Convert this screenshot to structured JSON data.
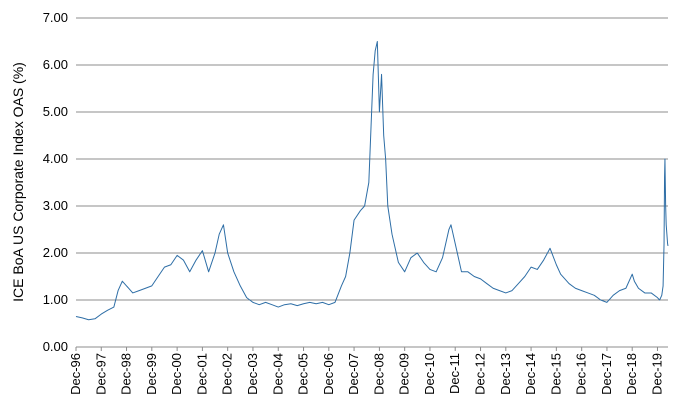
{
  "chart_data": {
    "type": "line",
    "title": "",
    "ylabel": "ICE BoA US Corporate Index OAS (%)",
    "xlabel": "",
    "ylim": [
      0,
      7
    ],
    "xlim": [
      "1996-12-01",
      "2020-05-01"
    ],
    "grid": "horizontal",
    "legend": "none",
    "line_color": "#2e6ea6",
    "y_ticks": [
      "0.00",
      "1.00",
      "2.00",
      "3.00",
      "4.00",
      "5.00",
      "6.00",
      "7.00"
    ],
    "x_ticks": [
      "Dec-96",
      "Dec-97",
      "Dec-98",
      "Dec-99",
      "Dec-00",
      "Dec-01",
      "Dec-02",
      "Dec-03",
      "Dec-04",
      "Dec-05",
      "Dec-06",
      "Dec-07",
      "Dec-08",
      "Dec-09",
      "Dec-10",
      "Dec-11",
      "Dec-12",
      "Dec-13",
      "Dec-14",
      "Dec-15",
      "Dec-16",
      "Dec-17",
      "Dec-18",
      "Dec-19"
    ],
    "series": [
      {
        "x": [
          "1996-12-01",
          "1997-03-01",
          "1997-06-01",
          "1997-09-01",
          "1997-12-01",
          "1998-03-01",
          "1998-06-01",
          "1998-08-01",
          "1998-10-01",
          "1998-12-01",
          "1999-03-01",
          "1999-06-01",
          "1999-09-01",
          "1999-12-01",
          "2000-03-01",
          "2000-06-01",
          "2000-09-01",
          "2000-12-01",
          "2001-03-01",
          "2001-06-01",
          "2001-09-01",
          "2001-12-01",
          "2002-03-01",
          "2002-06-01",
          "2002-08-01",
          "2002-10-01",
          "2002-12-01",
          "2003-03-01",
          "2003-06-01",
          "2003-09-01",
          "2003-12-01",
          "2004-03-01",
          "2004-06-01",
          "2004-09-01",
          "2004-12-01",
          "2005-03-01",
          "2005-06-01",
          "2005-09-01",
          "2005-12-01",
          "2006-03-01",
          "2006-06-01",
          "2006-09-01",
          "2006-12-01",
          "2007-03-01",
          "2007-06-01",
          "2007-08-01",
          "2007-10-01",
          "2007-12-01",
          "2008-03-01",
          "2008-05-01",
          "2008-07-01",
          "2008-09-01",
          "2008-10-01",
          "2008-11-01",
          "2008-12-01",
          "2009-01-01",
          "2009-02-01",
          "2009-03-01",
          "2009-04-01",
          "2009-06-01",
          "2009-09-01",
          "2009-12-01",
          "2010-03-01",
          "2010-06-01",
          "2010-09-01",
          "2010-12-01",
          "2011-03-01",
          "2011-06-01",
          "2011-09-01",
          "2011-10-01",
          "2011-12-01",
          "2012-03-01",
          "2012-06-01",
          "2012-09-01",
          "2012-12-01",
          "2013-03-01",
          "2013-06-01",
          "2013-09-01",
          "2013-12-01",
          "2014-03-01",
          "2014-06-01",
          "2014-09-01",
          "2014-12-01",
          "2015-03-01",
          "2015-06-01",
          "2015-09-01",
          "2015-12-01",
          "2016-02-01",
          "2016-04-01",
          "2016-06-01",
          "2016-09-01",
          "2016-12-01",
          "2017-03-01",
          "2017-06-01",
          "2017-09-01",
          "2017-12-01",
          "2018-03-01",
          "2018-06-01",
          "2018-09-01",
          "2018-12-01",
          "2019-01-01",
          "2019-03-01",
          "2019-06-01",
          "2019-09-01",
          "2019-12-01",
          "2020-01-01",
          "2020-02-01",
          "2020-02-20",
          "2020-03-05",
          "2020-03-12",
          "2020-03-18",
          "2020-03-23",
          "2020-03-28",
          "2020-04-05",
          "2020-04-15",
          "2020-04-25",
          "2020-05-01"
        ],
        "y": [
          0.65,
          0.62,
          0.58,
          0.6,
          0.7,
          0.78,
          0.85,
          1.2,
          1.4,
          1.3,
          1.15,
          1.2,
          1.25,
          1.3,
          1.5,
          1.7,
          1.75,
          1.95,
          1.85,
          1.6,
          1.85,
          2.05,
          1.6,
          2.0,
          2.4,
          2.6,
          2.0,
          1.6,
          1.3,
          1.05,
          0.95,
          0.9,
          0.95,
          0.9,
          0.85,
          0.9,
          0.92,
          0.88,
          0.92,
          0.95,
          0.92,
          0.95,
          0.9,
          0.95,
          1.3,
          1.5,
          2.0,
          2.7,
          2.9,
          3.0,
          3.5,
          5.8,
          6.3,
          6.5,
          5.0,
          5.8,
          4.5,
          4.0,
          3.0,
          2.4,
          1.8,
          1.6,
          1.9,
          2.0,
          1.8,
          1.65,
          1.6,
          1.9,
          2.5,
          2.6,
          2.2,
          1.6,
          1.6,
          1.5,
          1.45,
          1.35,
          1.25,
          1.2,
          1.15,
          1.2,
          1.35,
          1.5,
          1.7,
          1.65,
          1.85,
          2.1,
          1.75,
          1.55,
          1.45,
          1.35,
          1.25,
          1.2,
          1.15,
          1.1,
          1.0,
          0.95,
          1.1,
          1.2,
          1.25,
          1.55,
          1.4,
          1.25,
          1.15,
          1.15,
          1.05,
          1.0,
          1.1,
          1.3,
          2.2,
          3.6,
          4.0,
          3.5,
          3.0,
          2.6,
          2.4,
          2.2,
          2.15
        ]
      }
    ]
  }
}
